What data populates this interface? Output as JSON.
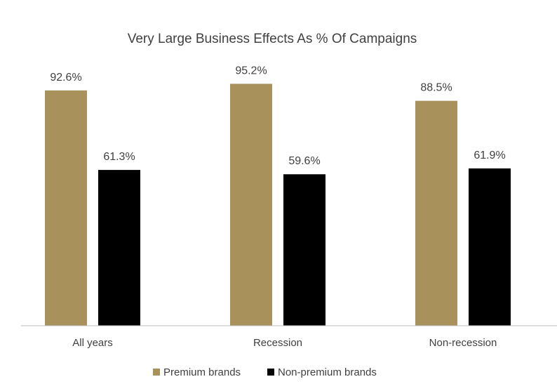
{
  "chart_data": {
    "type": "bar",
    "title": "Very Large Business Effects As % Of Campaigns",
    "categories": [
      "All years",
      "Recession",
      "Non-recession"
    ],
    "series": [
      {
        "name": "Premium brands",
        "values": [
          92.6,
          95.2,
          88.5
        ],
        "labels": [
          "92.6%",
          "95.2%",
          "88.5%"
        ],
        "color": "#A8915A"
      },
      {
        "name": "Non-premium brands",
        "values": [
          61.3,
          59.6,
          61.9
        ],
        "labels": [
          "61.3%",
          "59.6%",
          "61.9%"
        ],
        "color": "#000000"
      }
    ],
    "ylim": [
      0,
      100
    ],
    "grid": false,
    "legend_position": "bottom"
  }
}
